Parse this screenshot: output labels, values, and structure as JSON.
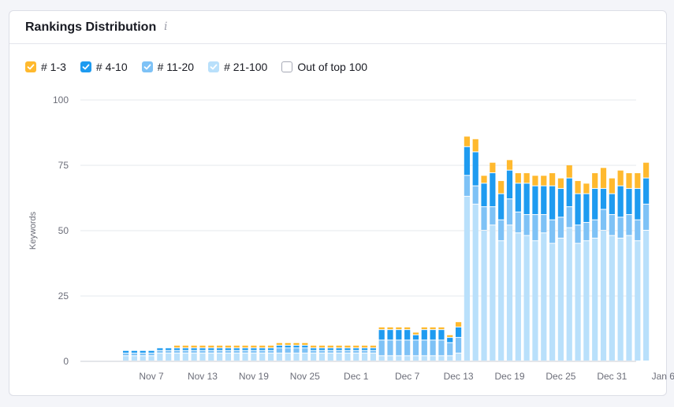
{
  "header": {
    "title": "Rankings Distribution",
    "info_icon": "i"
  },
  "legend": [
    {
      "label": "# 1-3",
      "color": "#ffb92e",
      "checked": true
    },
    {
      "label": "# 4-10",
      "color": "#1e9bf0",
      "checked": true
    },
    {
      "label": "# 11-20",
      "color": "#7ec2f6",
      "checked": true
    },
    {
      "label": "# 21-100",
      "color": "#b9e0fb",
      "checked": true
    },
    {
      "label": "Out of top 100",
      "color": "#ffffff",
      "checked": false
    }
  ],
  "chart_data": {
    "type": "bar",
    "stacked": true,
    "title": "",
    "xlabel": "",
    "ylabel": "Keywords",
    "ylim": [
      0,
      100
    ],
    "yticks": [
      0,
      25,
      50,
      75,
      100
    ],
    "xticks": [
      "Nov 7",
      "Nov 13",
      "Nov 19",
      "Nov 25",
      "Dec 1",
      "Dec 7",
      "Dec 13",
      "Dec 19",
      "Dec 25",
      "Dec 31",
      "Jan 6"
    ],
    "xtick_index": [
      3,
      9,
      15,
      21,
      27,
      33,
      39,
      45,
      51,
      57,
      63
    ],
    "grid": true,
    "series": [
      {
        "name": "# 21-100",
        "color": "#b9e0fb",
        "values": [
          2,
          2,
          2,
          2,
          3,
          3,
          3,
          3,
          3,
          3,
          3,
          3,
          3,
          3,
          3,
          3,
          3,
          3,
          3,
          3,
          3,
          3,
          3,
          3,
          3,
          3,
          3,
          3,
          3,
          3,
          2,
          2,
          2,
          2,
          2,
          2,
          2,
          2,
          2,
          3,
          63,
          60,
          50,
          52,
          46,
          52,
          49,
          48,
          46,
          49,
          45,
          47,
          51,
          45,
          46,
          47,
          50,
          48,
          47,
          48,
          46,
          50
        ]
      },
      {
        "name": "# 11-20",
        "color": "#7ec2f6",
        "values": [
          1,
          1,
          1,
          1,
          1,
          1,
          1,
          1,
          1,
          1,
          1,
          1,
          1,
          1,
          1,
          1,
          1,
          1,
          2,
          2,
          2,
          2,
          1,
          1,
          1,
          1,
          1,
          1,
          1,
          1,
          6,
          6,
          6,
          6,
          6,
          6,
          6,
          6,
          5,
          6,
          8,
          7,
          9,
          7,
          8,
          10,
          8,
          8,
          10,
          7,
          9,
          8,
          8,
          7,
          7,
          7,
          8,
          8,
          8,
          8,
          8,
          10
        ]
      },
      {
        "name": "# 4-10",
        "color": "#1e9bf0",
        "values": [
          1,
          1,
          1,
          1,
          1,
          1,
          1,
          1,
          1,
          1,
          1,
          1,
          1,
          1,
          1,
          1,
          1,
          1,
          1,
          1,
          1,
          1,
          1,
          1,
          1,
          1,
          1,
          1,
          1,
          1,
          4,
          4,
          4,
          4,
          2,
          4,
          4,
          4,
          2,
          4,
          11,
          13,
          9,
          13,
          10,
          11,
          11,
          12,
          11,
          11,
          13,
          11,
          11,
          12,
          11,
          12,
          8,
          8,
          12,
          10,
          12,
          10
        ]
      },
      {
        "name": "# 1-3",
        "color": "#ffb92e",
        "values": [
          0,
          0,
          0,
          0,
          0,
          0,
          1,
          1,
          1,
          1,
          1,
          1,
          1,
          1,
          1,
          1,
          1,
          1,
          1,
          1,
          1,
          1,
          1,
          1,
          1,
          1,
          1,
          1,
          1,
          1,
          1,
          1,
          1,
          1,
          1,
          1,
          1,
          1,
          1,
          2,
          4,
          5,
          3,
          4,
          5,
          4,
          4,
          4,
          4,
          4,
          5,
          4,
          5,
          5,
          4,
          6,
          8,
          6,
          6,
          6,
          6,
          6
        ]
      }
    ]
  }
}
